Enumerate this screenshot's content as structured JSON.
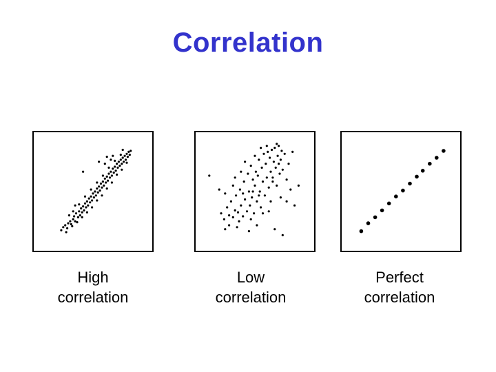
{
  "title": "Correlation",
  "colors": {
    "title": "#3333cc",
    "points": "#000000",
    "frame": "#000000"
  },
  "chart_data": [
    {
      "type": "scatter",
      "caption_lines": [
        "High",
        "correlation"
      ],
      "xlim": [
        0,
        10
      ],
      "ylim": [
        0,
        10
      ],
      "points": [
        [
          1.8,
          1.1
        ],
        [
          2.0,
          1.4
        ],
        [
          2.2,
          1.6
        ],
        [
          2.4,
          1.3
        ],
        [
          2.5,
          1.8
        ],
        [
          2.7,
          2.0
        ],
        [
          2.8,
          1.7
        ],
        [
          3.0,
          2.2
        ],
        [
          3.1,
          2.5
        ],
        [
          3.2,
          2.0
        ],
        [
          3.3,
          2.8
        ],
        [
          3.5,
          2.4
        ],
        [
          3.6,
          3.0
        ],
        [
          3.7,
          2.6
        ],
        [
          3.8,
          3.3
        ],
        [
          3.9,
          2.9
        ],
        [
          4.0,
          3.5
        ],
        [
          4.1,
          3.1
        ],
        [
          4.2,
          3.8
        ],
        [
          4.3,
          3.4
        ],
        [
          4.4,
          4.0
        ],
        [
          4.5,
          3.6
        ],
        [
          4.6,
          4.3
        ],
        [
          4.7,
          3.9
        ],
        [
          4.8,
          4.5
        ],
        [
          4.9,
          4.1
        ],
        [
          5.0,
          4.8
        ],
        [
          5.1,
          4.4
        ],
        [
          5.2,
          5.0
        ],
        [
          5.3,
          4.6
        ],
        [
          5.4,
          5.3
        ],
        [
          5.5,
          4.9
        ],
        [
          5.6,
          5.5
        ],
        [
          5.7,
          5.1
        ],
        [
          5.8,
          5.8
        ],
        [
          5.9,
          5.4
        ],
        [
          6.0,
          6.0
        ],
        [
          6.1,
          5.6
        ],
        [
          6.2,
          6.3
        ],
        [
          6.3,
          5.9
        ],
        [
          6.4,
          6.5
        ],
        [
          6.5,
          6.1
        ],
        [
          6.6,
          6.8
        ],
        [
          6.7,
          6.4
        ],
        [
          6.8,
          7.0
        ],
        [
          6.9,
          6.6
        ],
        [
          7.0,
          7.3
        ],
        [
          7.1,
          6.9
        ],
        [
          7.2,
          7.5
        ],
        [
          7.3,
          7.1
        ],
        [
          7.4,
          7.8
        ],
        [
          7.5,
          7.4
        ],
        [
          7.6,
          8.0
        ],
        [
          7.7,
          7.6
        ],
        [
          7.8,
          8.2
        ],
        [
          7.9,
          7.8
        ],
        [
          8.0,
          8.4
        ],
        [
          8.1,
          8.0
        ],
        [
          8.2,
          8.6
        ],
        [
          8.3,
          8.2
        ],
        [
          8.4,
          8.8
        ],
        [
          8.5,
          8.5
        ],
        [
          8.6,
          9.0
        ],
        [
          8.7,
          8.7
        ],
        [
          8.8,
          9.1
        ],
        [
          2.3,
          0.9
        ],
        [
          2.9,
          1.5
        ],
        [
          3.4,
          1.9
        ],
        [
          3.9,
          2.4
        ],
        [
          4.4,
          2.9
        ],
        [
          4.9,
          3.4
        ],
        [
          5.4,
          4.1
        ],
        [
          5.9,
          4.6
        ],
        [
          6.4,
          5.3
        ],
        [
          6.9,
          5.9
        ],
        [
          7.4,
          6.7
        ],
        [
          7.9,
          7.2
        ],
        [
          8.4,
          7.9
        ],
        [
          3.0,
          3.0
        ],
        [
          3.6,
          3.7
        ],
        [
          4.2,
          4.5
        ],
        [
          4.8,
          5.2
        ],
        [
          5.4,
          5.9
        ],
        [
          6.0,
          6.6
        ],
        [
          6.6,
          7.4
        ],
        [
          7.2,
          8.1
        ],
        [
          7.8,
          8.7
        ],
        [
          6.2,
          7.8
        ],
        [
          6.8,
          8.2
        ],
        [
          4.0,
          7.0
        ],
        [
          5.6,
          8.0
        ],
        [
          6.4,
          8.5
        ],
        [
          7.0,
          8.6
        ],
        [
          8.0,
          9.2
        ],
        [
          3.2,
          3.6
        ],
        [
          2.6,
          2.6
        ]
      ]
    },
    {
      "type": "scatter",
      "caption_lines": [
        "Low",
        "correlation"
      ],
      "xlim": [
        0,
        10
      ],
      "ylim": [
        0,
        10
      ],
      "points": [
        [
          1.6,
          2.8
        ],
        [
          1.9,
          2.2
        ],
        [
          2.2,
          3.4
        ],
        [
          2.4,
          2.6
        ],
        [
          2.6,
          4.0
        ],
        [
          2.8,
          2.4
        ],
        [
          3.0,
          3.1
        ],
        [
          3.1,
          4.6
        ],
        [
          3.3,
          2.9
        ],
        [
          3.5,
          5.2
        ],
        [
          3.6,
          3.6
        ],
        [
          3.8,
          2.5
        ],
        [
          3.9,
          6.0
        ],
        [
          4.0,
          4.2
        ],
        [
          4.2,
          3.0
        ],
        [
          4.3,
          6.8
        ],
        [
          4.4,
          5.0
        ],
        [
          4.5,
          3.6
        ],
        [
          4.6,
          7.6
        ],
        [
          4.7,
          4.4
        ],
        [
          4.8,
          6.2
        ],
        [
          4.9,
          2.8
        ],
        [
          5.0,
          5.6
        ],
        [
          5.1,
          7.0
        ],
        [
          5.2,
          4.0
        ],
        [
          5.3,
          6.6
        ],
        [
          5.4,
          8.2
        ],
        [
          5.5,
          5.0
        ],
        [
          5.6,
          3.4
        ],
        [
          5.7,
          7.4
        ],
        [
          5.8,
          6.0
        ],
        [
          5.9,
          8.8
        ],
        [
          6.0,
          4.6
        ],
        [
          6.1,
          7.8
        ],
        [
          6.2,
          6.4
        ],
        [
          6.3,
          9.0
        ],
        [
          6.4,
          5.4
        ],
        [
          6.5,
          8.4
        ],
        [
          6.6,
          7.0
        ],
        [
          6.7,
          9.2
        ],
        [
          6.8,
          6.0
        ],
        [
          6.9,
          8.0
        ],
        [
          7.0,
          9.4
        ],
        [
          7.1,
          7.4
        ],
        [
          7.2,
          5.6
        ],
        [
          7.3,
          8.6
        ],
        [
          7.4,
          9.6
        ],
        [
          7.5,
          6.8
        ],
        [
          7.6,
          8.2
        ],
        [
          7.7,
          9.1
        ],
        [
          7.8,
          7.2
        ],
        [
          8.0,
          8.8
        ],
        [
          8.2,
          6.2
        ],
        [
          8.4,
          7.8
        ],
        [
          8.6,
          5.2
        ],
        [
          8.8,
          9.0
        ],
        [
          0.4,
          6.6
        ],
        [
          9.4,
          5.6
        ],
        [
          9.0,
          3.6
        ],
        [
          7.8,
          0.6
        ],
        [
          7.0,
          1.2
        ],
        [
          5.2,
          1.6
        ],
        [
          4.4,
          1.0
        ],
        [
          3.2,
          1.4
        ],
        [
          2.4,
          1.6
        ],
        [
          2.0,
          1.2
        ],
        [
          1.4,
          5.2
        ],
        [
          2.0,
          4.8
        ],
        [
          3.0,
          6.4
        ],
        [
          5.6,
          9.4
        ],
        [
          6.2,
          9.6
        ],
        [
          7.2,
          9.8
        ],
        [
          5.0,
          8.6
        ],
        [
          4.0,
          8.0
        ],
        [
          3.6,
          7.0
        ],
        [
          6.6,
          4.0
        ],
        [
          7.6,
          4.4
        ],
        [
          8.2,
          4.0
        ],
        [
          4.6,
          2.2
        ],
        [
          3.4,
          2.0
        ],
        [
          5.8,
          2.8
        ],
        [
          6.4,
          3.0
        ],
        [
          2.8,
          5.6
        ],
        [
          3.8,
          4.8
        ],
        [
          4.8,
          5.0
        ],
        [
          5.4,
          4.6
        ],
        [
          6.8,
          6.4
        ],
        [
          7.4,
          7.8
        ]
      ]
    },
    {
      "type": "scatter",
      "caption_lines": [
        "Perfect",
        "correlation"
      ],
      "xlim": [
        0,
        10
      ],
      "ylim": [
        0,
        10
      ],
      "points": [
        [
          1.0,
          1.0
        ],
        [
          1.7,
          1.8
        ],
        [
          2.4,
          2.4
        ],
        [
          3.1,
          3.1
        ],
        [
          3.8,
          3.8
        ],
        [
          4.5,
          4.5
        ],
        [
          5.2,
          5.1
        ],
        [
          5.9,
          5.8
        ],
        [
          6.6,
          6.5
        ],
        [
          7.2,
          7.1
        ],
        [
          7.9,
          7.8
        ],
        [
          8.6,
          8.4
        ],
        [
          9.3,
          9.1
        ]
      ]
    }
  ]
}
